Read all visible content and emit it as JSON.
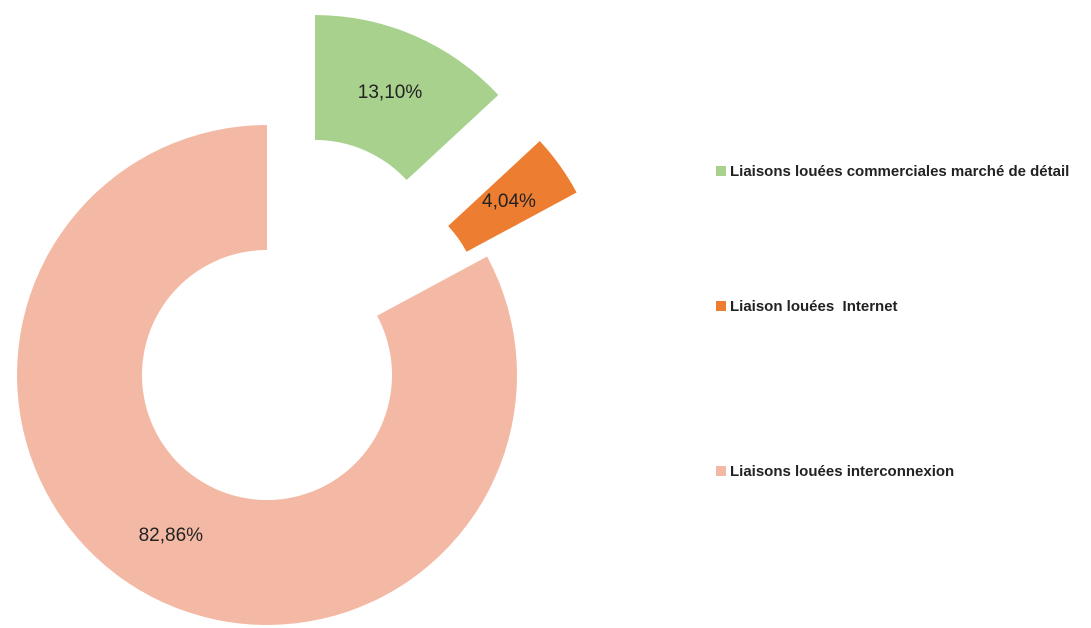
{
  "chart_data": {
    "type": "donut",
    "categories": [
      "Liaisons louées commerciales marché de détail",
      "Liaison louées  Internet",
      "Liaisons louées interconnexion"
    ],
    "values": [
      13.1,
      4.04,
      82.86
    ],
    "value_labels": [
      "13,10%",
      "4,04%",
      "82,86%"
    ],
    "colors": [
      "#a9d18e",
      "#ed7d31",
      "#f4b9a5"
    ],
    "legend": "right"
  }
}
